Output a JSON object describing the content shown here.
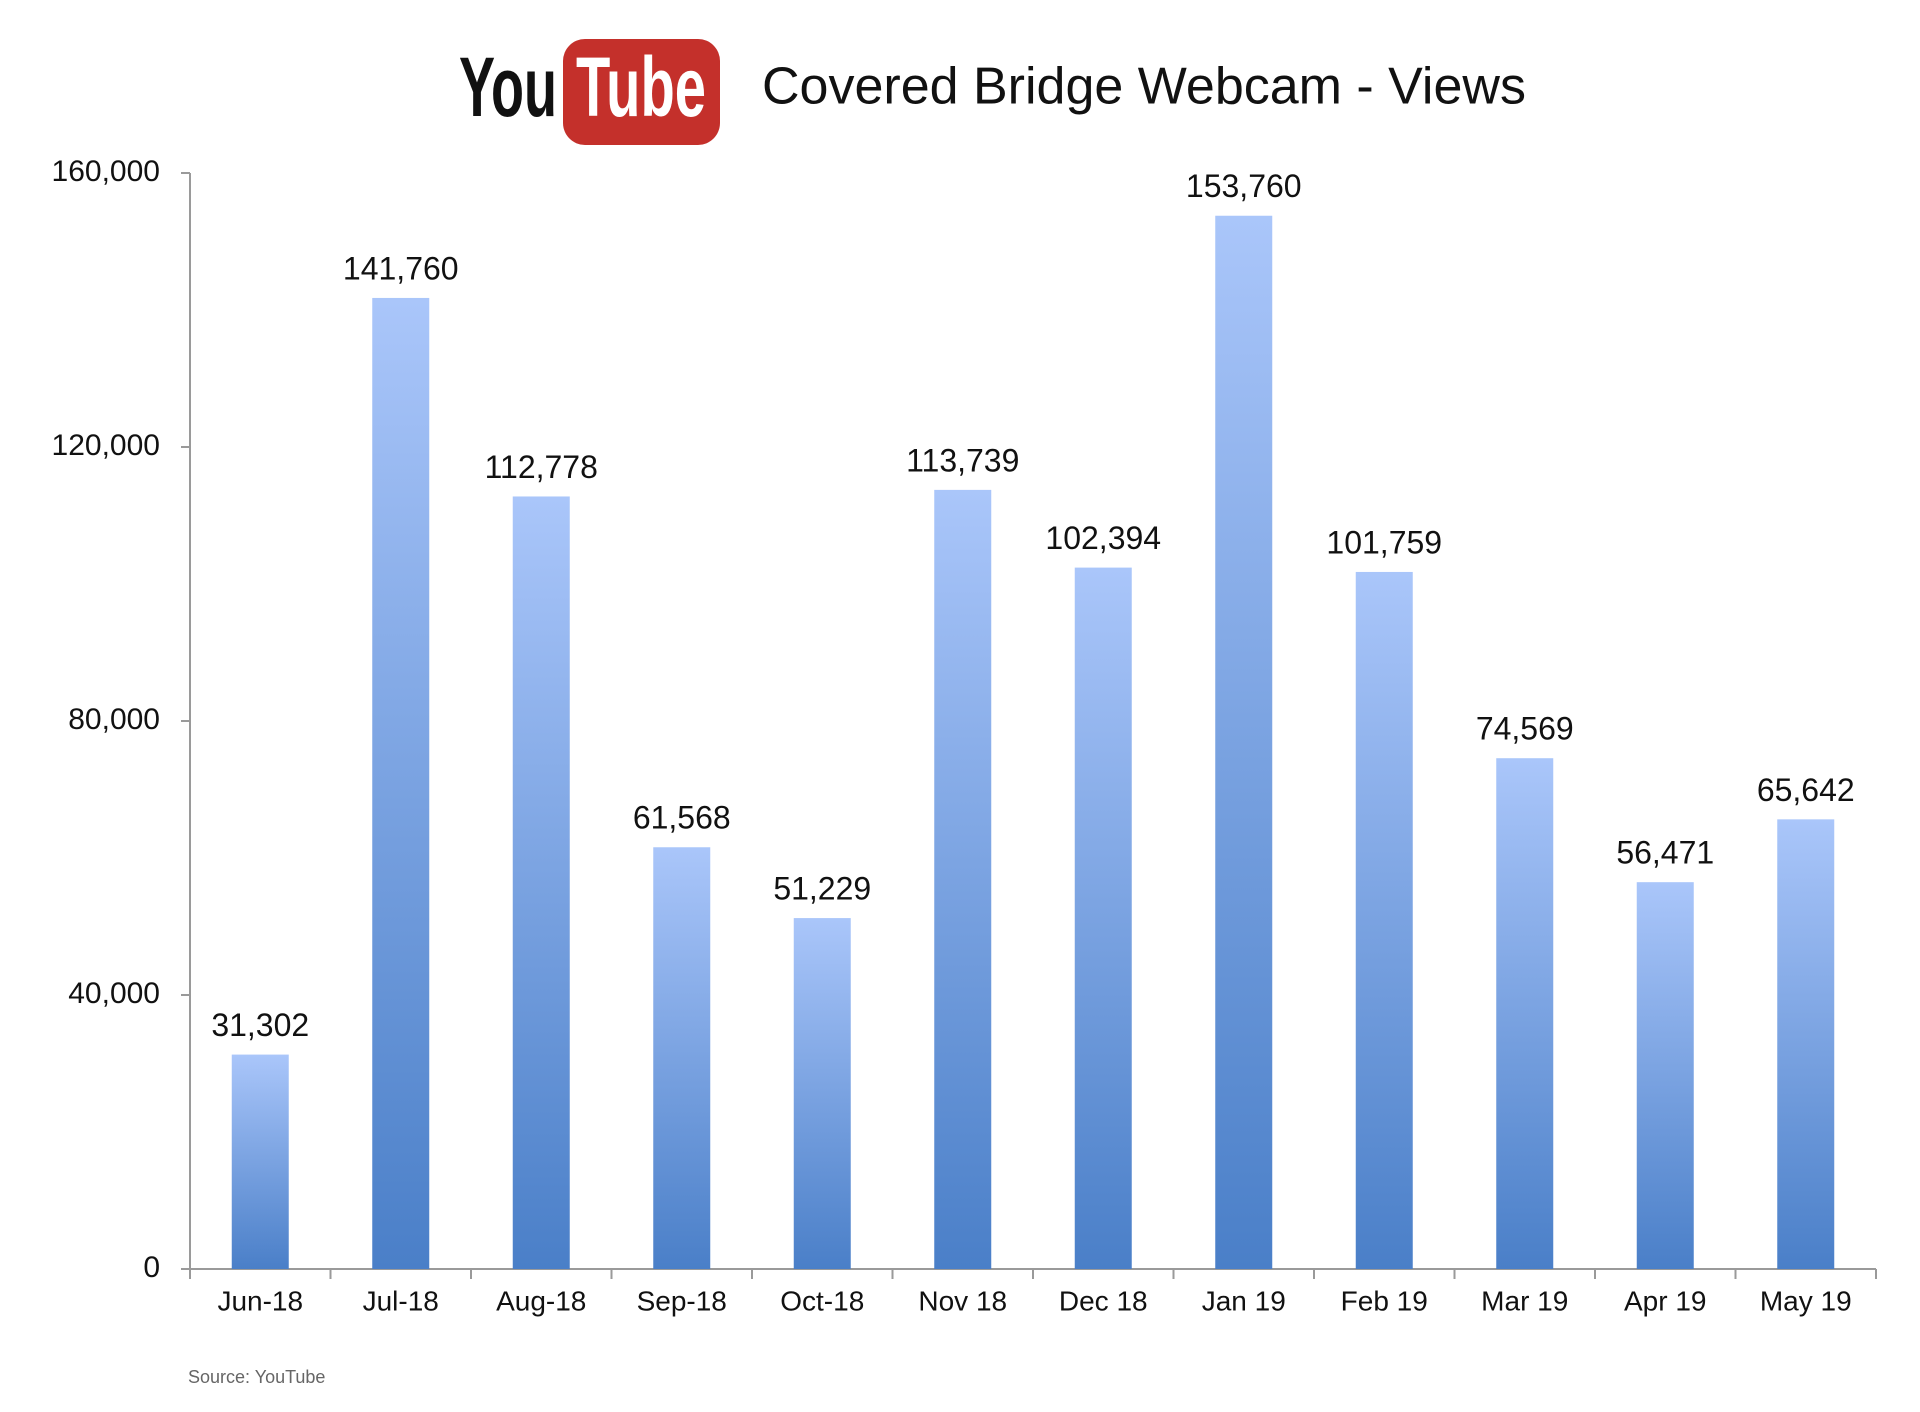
{
  "chart_data": {
    "type": "bar",
    "logo": {
      "left": "You",
      "right": "Tube"
    },
    "title": "Covered Bridge Webcam - Views",
    "source": "Source: YouTube",
    "categories": [
      "Jun-18",
      "Jul-18",
      "Aug-18",
      "Sep-18",
      "Oct-18",
      "Nov 18",
      "Dec 18",
      "Jan 19",
      "Feb 19",
      "Mar 19",
      "Apr 19",
      "May 19"
    ],
    "values": [
      31302,
      141760,
      112778,
      61568,
      51229,
      113739,
      102394,
      153760,
      101759,
      74569,
      56471,
      65642
    ],
    "value_labels": [
      "31,302",
      "141,760",
      "112,778",
      "61,568",
      "51,229",
      "113,739",
      "102,394",
      "153,760",
      "101,759",
      "74,569",
      "56,471",
      "65,642"
    ],
    "color": "#4a7fc8",
    "ylim": [
      0,
      160000
    ],
    "yticks": [
      0,
      {
        "value": 40000,
        "label": "40,000"
      },
      {
        "value": 80000,
        "label": "80,000"
      },
      {
        "value": 120000,
        "label": "120,000"
      },
      {
        "value": 160000,
        "label": "160,000"
      }
    ],
    "grid": false
  }
}
